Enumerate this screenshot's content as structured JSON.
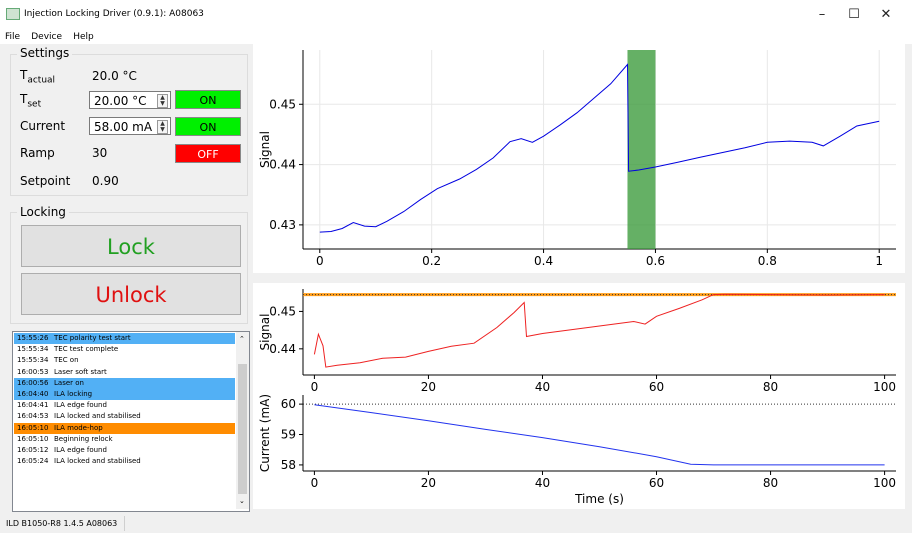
{
  "window": {
    "title": "Injection Locking Driver (0.9.1): A08063",
    "controls": [
      "–",
      "☐",
      "✕"
    ]
  },
  "menu": [
    "File",
    "Device",
    "Help"
  ],
  "settings": {
    "group_label": "Settings",
    "t_actual_label": "T",
    "t_actual_sub": "actual",
    "t_actual_value": "20.0 °C",
    "t_set_label": "T",
    "t_set_sub": "set",
    "t_set_value": "20.00 °C",
    "t_set_toggle": "ON",
    "current_label": "Current",
    "current_value": "58.00 mA",
    "current_toggle": "ON",
    "ramp_label": "Ramp",
    "ramp_value": "30",
    "ramp_toggle": "OFF",
    "setpoint_label": "Setpoint",
    "setpoint_value": "0.90"
  },
  "locking": {
    "group_label": "Locking",
    "lock_label": "Lock",
    "unlock_label": "Unlock"
  },
  "log": [
    {
      "time": "15:55:26",
      "msg": "TEC polarity test start",
      "hl": "blue"
    },
    {
      "time": "15:55:34",
      "msg": "TEC test complete",
      "hl": ""
    },
    {
      "time": "15:55:34",
      "msg": "TEC on",
      "hl": ""
    },
    {
      "time": "16:00:53",
      "msg": "Laser soft start",
      "hl": ""
    },
    {
      "time": "16:00:56",
      "msg": "Laser on",
      "hl": "blue"
    },
    {
      "time": "16:04:40",
      "msg": "ILA locking",
      "hl": "blue"
    },
    {
      "time": "16:04:41",
      "msg": "ILA edge found",
      "hl": ""
    },
    {
      "time": "16:04:53",
      "msg": "ILA locked and stabilised",
      "hl": ""
    },
    {
      "time": "16:05:10",
      "msg": "ILA mode-hop",
      "hl": "orange"
    },
    {
      "time": "16:05:10",
      "msg": "Beginning relock",
      "hl": ""
    },
    {
      "time": "16:05:12",
      "msg": "ILA edge found",
      "hl": ""
    },
    {
      "time": "16:05:24",
      "msg": "ILA locked and stabilised",
      "hl": ""
    }
  ],
  "status": {
    "text": "ILD B1050-R8 1.4.5  A08063"
  },
  "colors": {
    "on": "#00f000",
    "off": "#ff0000",
    "lock_text": "#22a022",
    "unlock_text": "#e01010",
    "log_blue": "#52b0f5",
    "log_orange": "#ff8c00"
  },
  "chart_data": [
    {
      "type": "line",
      "title": "",
      "xlabel": "",
      "ylabel": "Signal",
      "xlim": [
        -0.03,
        1.03
      ],
      "ylim": [
        0.426,
        0.459
      ],
      "xticks": [
        "0",
        "0.2",
        "0.4",
        "0.6",
        "0.8",
        "1"
      ],
      "yticks": [
        "0.43",
        "0.44",
        "0.45"
      ],
      "highlight_span": [
        0.55,
        0.6
      ],
      "series": [
        {
          "x": [
            0,
            0.02,
            0.04,
            0.06,
            0.08,
            0.1,
            0.12,
            0.15,
            0.18,
            0.21,
            0.25,
            0.28,
            0.31,
            0.34,
            0.36,
            0.38,
            0.4,
            0.43,
            0.46,
            0.49,
            0.52,
            0.55,
            0.552,
            0.57,
            0.6,
            0.64,
            0.68,
            0.72,
            0.76,
            0.8,
            0.84,
            0.88,
            0.9,
            0.93,
            0.96,
            1.0
          ],
          "y": [
            0.4288,
            0.4289,
            0.4294,
            0.4304,
            0.4298,
            0.4297,
            0.4306,
            0.4322,
            0.4342,
            0.436,
            0.4376,
            0.4392,
            0.4411,
            0.4438,
            0.4443,
            0.4437,
            0.4447,
            0.4466,
            0.4486,
            0.451,
            0.4534,
            0.4566,
            0.4389,
            0.4391,
            0.4396,
            0.4404,
            0.4412,
            0.442,
            0.4428,
            0.4437,
            0.4439,
            0.4437,
            0.4431,
            0.4447,
            0.4464,
            0.4472
          ]
        }
      ]
    },
    {
      "type": "line",
      "title": "",
      "xlabel": "",
      "ylabel": "Signal",
      "xlim": [
        -2,
        102
      ],
      "ylim": [
        0.433,
        0.456
      ],
      "xticks": [
        "0",
        "20",
        "40",
        "60",
        "80",
        "100"
      ],
      "yticks": [
        "0.44",
        "0.45"
      ],
      "threshold": 0.4545,
      "series": [
        {
          "x": [
            0,
            0.7,
            1.5,
            2,
            4,
            8,
            12,
            16,
            20,
            24,
            28,
            32,
            35,
            36.8,
            37.2,
            40,
            44,
            48,
            52,
            56,
            58,
            60,
            64,
            68,
            70,
            72,
            80,
            90,
            100
          ],
          "y": [
            0.4385,
            0.4439,
            0.4408,
            0.4351,
            0.4356,
            0.4363,
            0.4375,
            0.4378,
            0.4393,
            0.4407,
            0.4415,
            0.4457,
            0.4497,
            0.4524,
            0.4433,
            0.4441,
            0.4449,
            0.4457,
            0.4465,
            0.4473,
            0.4466,
            0.4487,
            0.4508,
            0.4531,
            0.4545,
            0.4546,
            0.4545,
            0.4544,
            0.4545
          ]
        }
      ]
    },
    {
      "type": "line",
      "title": "",
      "xlabel": "Time (s)",
      "ylabel": "Current (mA)",
      "xlim": [
        -2,
        102
      ],
      "ylim": [
        57.8,
        60.3
      ],
      "xticks": [
        "0",
        "20",
        "40",
        "60",
        "80",
        "100"
      ],
      "yticks": [
        "58",
        "59",
        "60"
      ],
      "threshold": 60,
      "series": [
        {
          "x": [
            0,
            10,
            20,
            30,
            40,
            50,
            60,
            66,
            70,
            80,
            90,
            100
          ],
          "y": [
            59.98,
            59.72,
            59.45,
            59.17,
            58.9,
            58.6,
            58.27,
            58.02,
            58.0,
            58.0,
            58.0,
            58.0
          ]
        }
      ]
    }
  ]
}
